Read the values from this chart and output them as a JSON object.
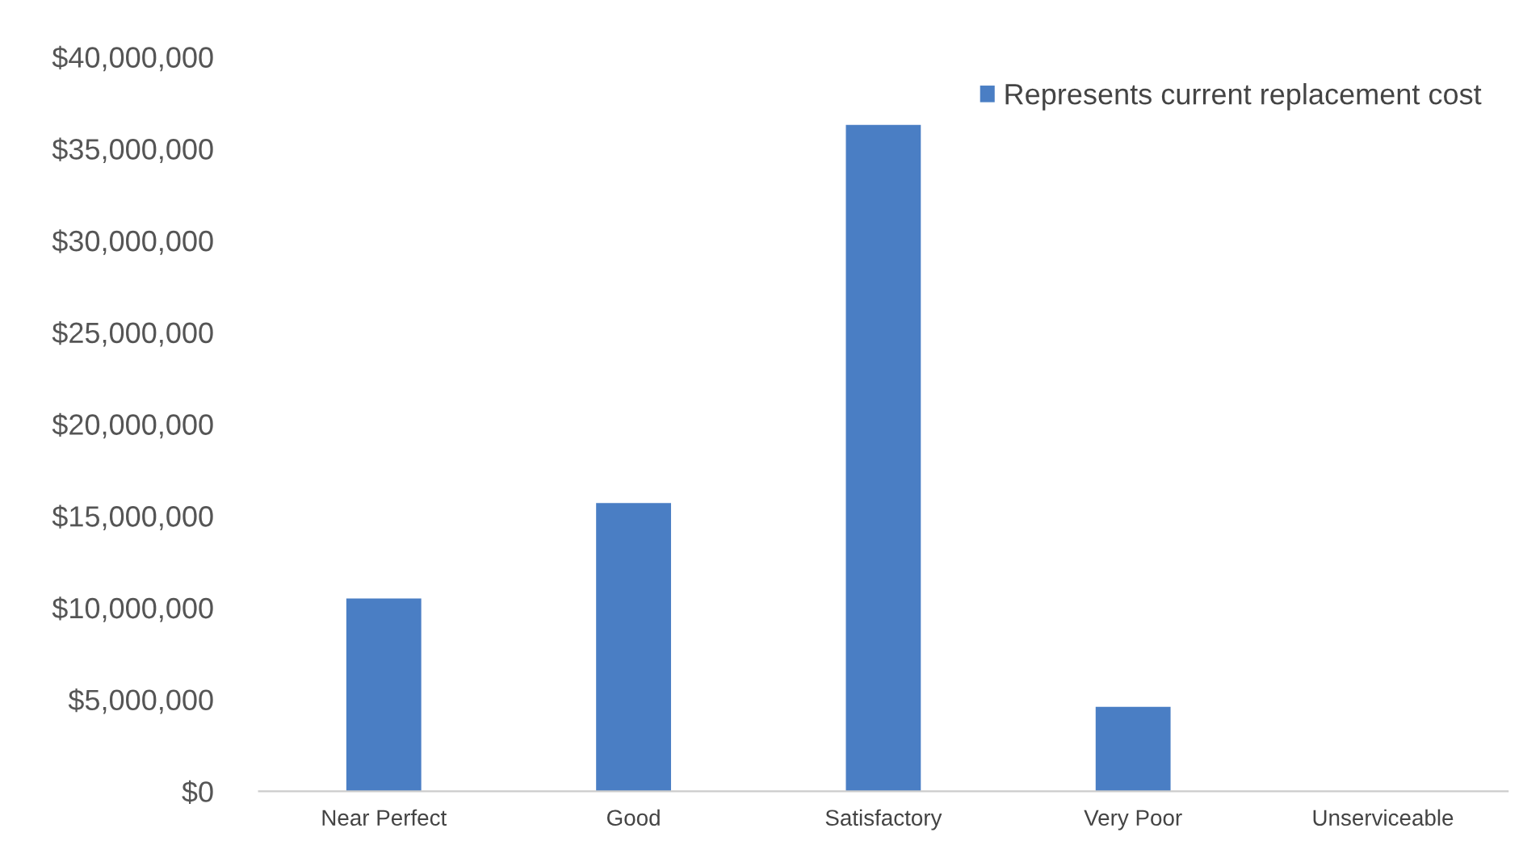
{
  "chart_data": {
    "type": "bar",
    "categories": [
      "Near Perfect",
      "Good",
      "Satisfactory",
      "Very Poor",
      "Unserviceable"
    ],
    "series": [
      {
        "name": "Represents current replacement cost",
        "color": "#4a7ec4",
        "values": [
          10500000,
          15700000,
          36300000,
          4600000,
          0
        ]
      }
    ],
    "ylim": [
      0,
      40000000
    ],
    "yticks": [
      {
        "value": 0,
        "label": "$0"
      },
      {
        "value": 5000000,
        "label": "$5,000,000"
      },
      {
        "value": 10000000,
        "label": "$10,000,000"
      },
      {
        "value": 15000000,
        "label": "$15,000,000"
      },
      {
        "value": 20000000,
        "label": "$20,000,000"
      },
      {
        "value": 25000000,
        "label": "$25,000,000"
      },
      {
        "value": 30000000,
        "label": "$30,000,000"
      },
      {
        "value": 35000000,
        "label": "$35,000,000"
      },
      {
        "value": 40000000,
        "label": "$40,000,000"
      }
    ],
    "grid": false,
    "legend": "top right"
  }
}
